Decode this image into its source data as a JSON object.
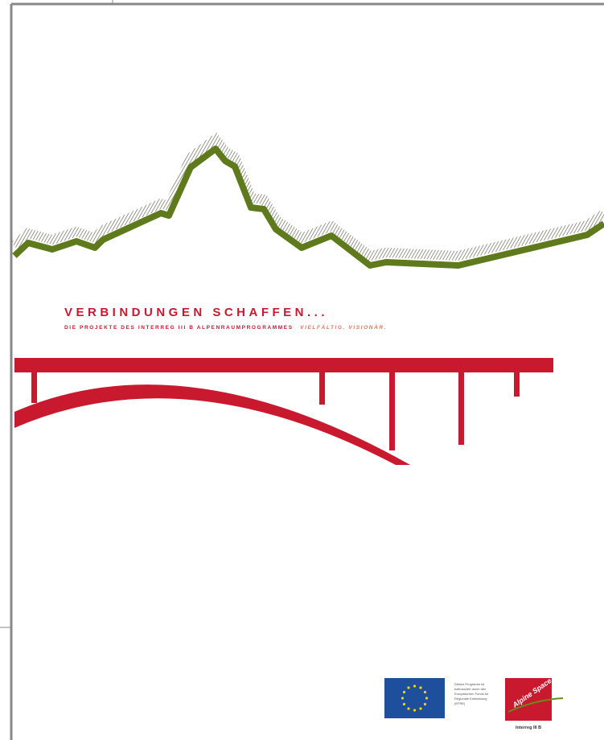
{
  "cover": {
    "title": "VERBINDUNGEN SCHAFFEN...",
    "subtitle": "DIE PROJEKTE DES INTERREG III B ALPENRAUMPROGRAMMES",
    "subtitle_emphasis": "VIELFÄLTIG. VISIONÄR.",
    "logos": {
      "eu_text": [
        "Dieses Programm ist",
        "kofinanziert durch den",
        "Europäischen Fonds für",
        "Regionale Entwicklung",
        "(EFRE)"
      ],
      "alpine_space": "Alpine Space",
      "interreg": "Interreg III B"
    }
  }
}
